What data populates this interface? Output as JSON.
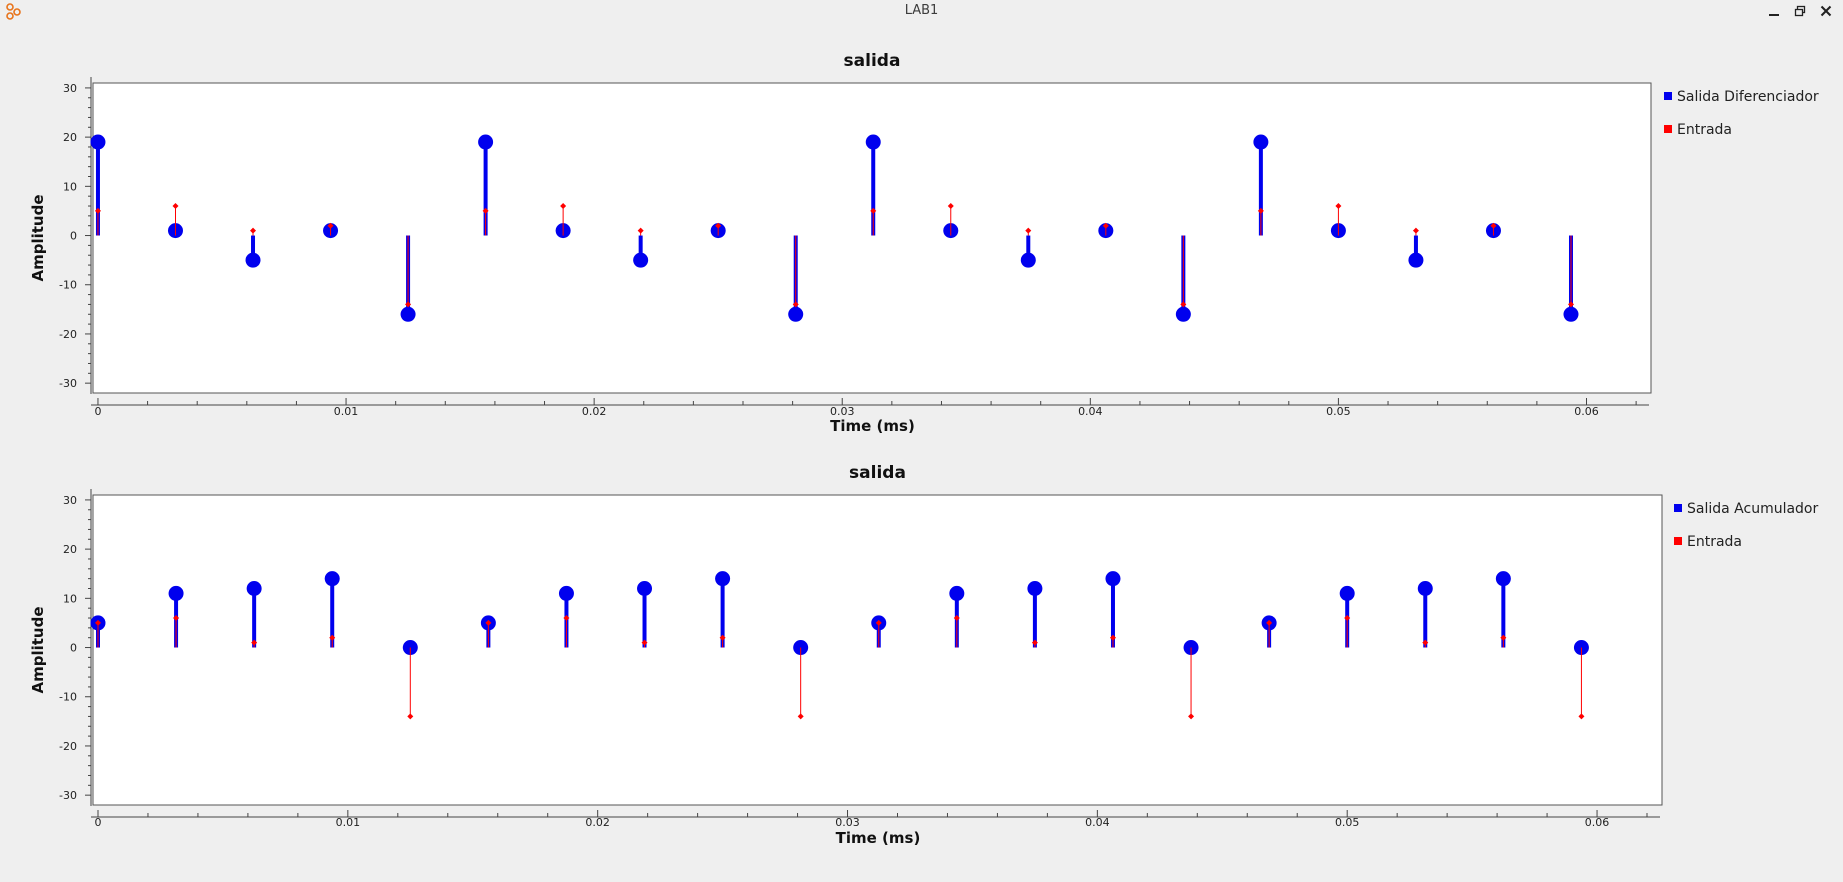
{
  "window": {
    "title": "LAB1",
    "controls": [
      "minimize-icon",
      "restore-icon",
      "close-icon"
    ]
  },
  "colors": {
    "series_primary": "#0000ee",
    "series_input": "#ff0000",
    "plot_bg": "#ffffff",
    "window_bg": "#efefef"
  },
  "chart_data": [
    {
      "type": "stem",
      "title": "salida",
      "xlabel": "Time (ms)",
      "ylabel": "Amplitude",
      "xlim": [
        -0.0002,
        0.0626
      ],
      "ylim": [
        -32,
        31
      ],
      "xticks": [
        0,
        0.01,
        0.02,
        0.03,
        0.04,
        0.05,
        0.06
      ],
      "xtick_labels": [
        "0",
        "0.01",
        "0.02",
        "0.03",
        "0.04",
        "0.05",
        "0.06"
      ],
      "yticks": [
        -30,
        -20,
        -10,
        0,
        10,
        20,
        30
      ],
      "ytick_labels": [
        "-30",
        "-20",
        "-10",
        "0",
        "10",
        "20",
        "30"
      ],
      "legend_position": "right",
      "x": [
        0,
        0.003125,
        0.00625,
        0.009375,
        0.0125,
        0.015625,
        0.01875,
        0.021875,
        0.025,
        0.028125,
        0.03125,
        0.034375,
        0.0375,
        0.040625,
        0.04375,
        0.046875,
        0.05,
        0.053125,
        0.05625,
        0.059375
      ],
      "series": [
        {
          "name": "Salida Diferenciador",
          "color": "#0000ee",
          "values": [
            19,
            1,
            -5,
            1,
            -16,
            19,
            1,
            -5,
            1,
            -16,
            19,
            1,
            -5,
            1,
            -16,
            19,
            1,
            -5,
            1,
            -16
          ]
        },
        {
          "name": "Entrada",
          "color": "#ff0000",
          "values": [
            5,
            6,
            1,
            2,
            -14,
            5,
            6,
            1,
            2,
            -14,
            5,
            6,
            1,
            2,
            -14,
            5,
            6,
            1,
            2,
            -14
          ]
        }
      ]
    },
    {
      "type": "stem",
      "title": "salida",
      "xlabel": "Time (ms)",
      "ylabel": "Amplitude",
      "xlim": [
        -0.0002,
        0.0626
      ],
      "ylim": [
        -32,
        31
      ],
      "xticks": [
        0,
        0.01,
        0.02,
        0.03,
        0.04,
        0.05,
        0.06
      ],
      "xtick_labels": [
        "0",
        "0.01",
        "0.02",
        "0.03",
        "0.04",
        "0.05",
        "0.06"
      ],
      "yticks": [
        -30,
        -20,
        -10,
        0,
        10,
        20,
        30
      ],
      "ytick_labels": [
        "-30",
        "-20",
        "-10",
        "0",
        "10",
        "20",
        "30"
      ],
      "legend_position": "right",
      "x": [
        0,
        0.003125,
        0.00625,
        0.009375,
        0.0125,
        0.015625,
        0.01875,
        0.021875,
        0.025,
        0.028125,
        0.03125,
        0.034375,
        0.0375,
        0.040625,
        0.04375,
        0.046875,
        0.05,
        0.053125,
        0.05625,
        0.059375
      ],
      "series": [
        {
          "name": "Salida Acumulador",
          "color": "#0000ee",
          "values": [
            5,
            11,
            12,
            14,
            0,
            5,
            11,
            12,
            14,
            0,
            5,
            11,
            12,
            14,
            0,
            5,
            11,
            12,
            14,
            0
          ]
        },
        {
          "name": "Entrada",
          "color": "#ff0000",
          "values": [
            5,
            6,
            1,
            2,
            -14,
            5,
            6,
            1,
            2,
            -14,
            5,
            6,
            1,
            2,
            -14,
            5,
            6,
            1,
            2,
            -14
          ]
        }
      ]
    }
  ]
}
